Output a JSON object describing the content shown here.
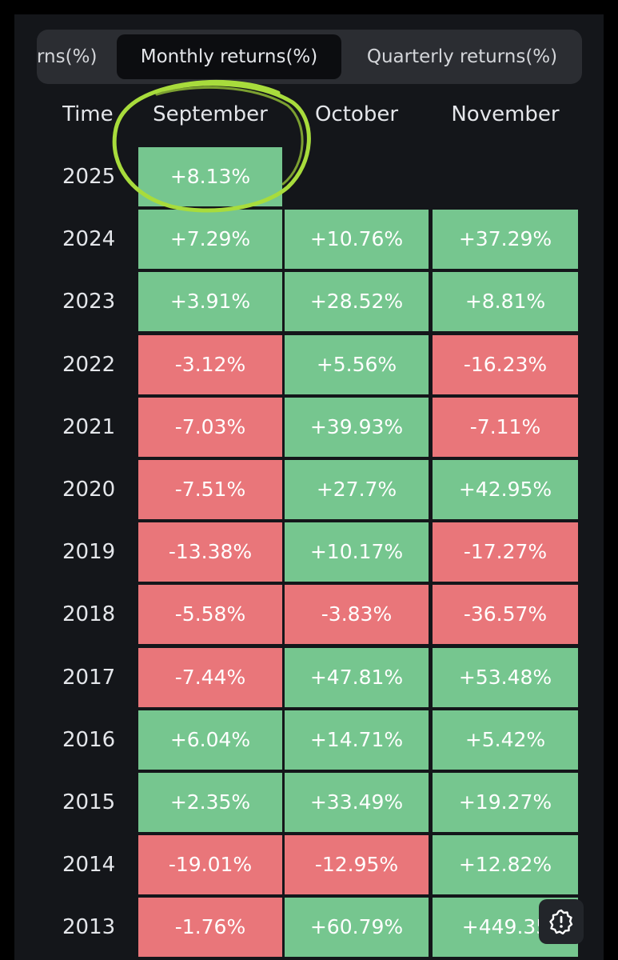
{
  "tabs": {
    "previous_label": "rns(%)",
    "monthly_label": "Monthly returns(%)",
    "quarterly_label": "Quarterly returns(%)",
    "active": "Monthly returns(%)"
  },
  "table": {
    "headers": {
      "time": "Time",
      "col1": "September",
      "col2": "October",
      "col3": "November"
    },
    "rows": [
      {
        "year": "2025",
        "cells": [
          "+8.13%",
          "",
          ""
        ]
      },
      {
        "year": "2024",
        "cells": [
          "+7.29%",
          "+10.76%",
          "+37.29%"
        ]
      },
      {
        "year": "2023",
        "cells": [
          "+3.91%",
          "+28.52%",
          "+8.81%"
        ]
      },
      {
        "year": "2022",
        "cells": [
          "-3.12%",
          "+5.56%",
          "-16.23%"
        ]
      },
      {
        "year": "2021",
        "cells": [
          "-7.03%",
          "+39.93%",
          "-7.11%"
        ]
      },
      {
        "year": "2020",
        "cells": [
          "-7.51%",
          "+27.7%",
          "+42.95%"
        ]
      },
      {
        "year": "2019",
        "cells": [
          "-13.38%",
          "+10.17%",
          "-17.27%"
        ]
      },
      {
        "year": "2018",
        "cells": [
          "-5.58%",
          "-3.83%",
          "-36.57%"
        ]
      },
      {
        "year": "2017",
        "cells": [
          "-7.44%",
          "+47.81%",
          "+53.48%"
        ]
      },
      {
        "year": "2016",
        "cells": [
          "+6.04%",
          "+14.71%",
          "+5.42%"
        ]
      },
      {
        "year": "2015",
        "cells": [
          "+2.35%",
          "+33.49%",
          "+19.27%"
        ]
      },
      {
        "year": "2014",
        "cells": [
          "-19.01%",
          "-12.95%",
          "+12.82%"
        ]
      },
      {
        "year": "2013",
        "cells": [
          "-1.76%",
          "+60.79%",
          "+449.35"
        ]
      }
    ]
  },
  "colors": {
    "positive": "#76c68f",
    "negative": "#e9767a",
    "highlight": "#a8dc3c",
    "background": "#14161a"
  },
  "icons": {
    "feedback": "feedback-icon",
    "highlight": "highlight-circle-annotation"
  }
}
